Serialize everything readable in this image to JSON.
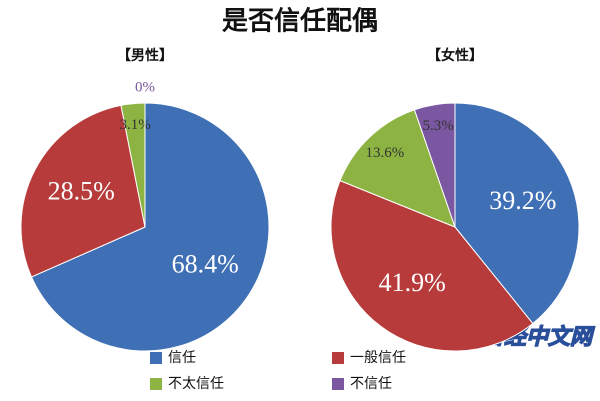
{
  "title": "是否信任配偶",
  "watermark": "日经中文网",
  "chart_data": [
    {
      "type": "pie",
      "subtitle": "【男性】",
      "categories": [
        "信任",
        "一般信任",
        "不太信任",
        "不信任"
      ],
      "values": [
        68.4,
        28.5,
        3.1,
        0
      ],
      "value_labels": [
        "68.4%",
        "28.5%",
        "3.1%",
        "0%"
      ],
      "colors": [
        "#3f6fb4",
        "#b83b3b",
        "#8db443",
        "#7b57a1"
      ]
    },
    {
      "type": "pie",
      "subtitle": "【女性】",
      "categories": [
        "信任",
        "一般信任",
        "不太信任",
        "不信任"
      ],
      "values": [
        39.2,
        41.9,
        13.6,
        5.3
      ],
      "value_labels": [
        "39.2%",
        "41.9%",
        "13.6%",
        "5.3%"
      ],
      "colors": [
        "#3f6fb4",
        "#b83b3b",
        "#8db443",
        "#7b57a1"
      ]
    }
  ]
}
